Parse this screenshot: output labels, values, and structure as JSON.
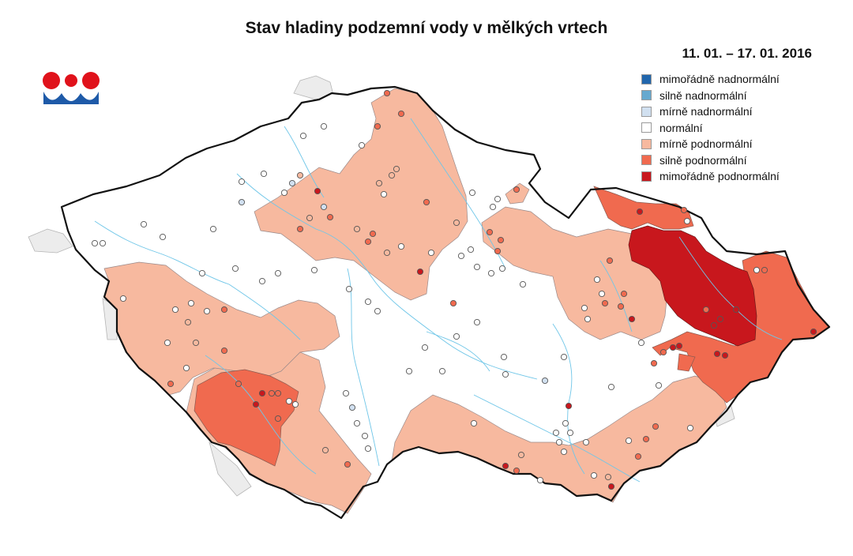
{
  "header": {
    "title": "Stav hladiny podzemní vody v mělkých vrtech",
    "period": "11. 01. – 17. 01. 2016"
  },
  "logo": {
    "icon": "chmi-logo-icon",
    "red": "#e0121b",
    "blue": "#1e5aa8"
  },
  "legend": {
    "items": [
      {
        "label": "mimořádně nadnormální",
        "color": "#2166ac"
      },
      {
        "label": "silně nadnormální",
        "color": "#67a9cf"
      },
      {
        "label": "mírně nadnormální",
        "color": "#d1e0f0"
      },
      {
        "label": "normální",
        "color": "#ffffff"
      },
      {
        "label": "mírně podnormální",
        "color": "#f7b99f"
      },
      {
        "label": "silně podnormální",
        "color": "#f06a4f"
      },
      {
        "label": "mimořádně podnormální",
        "color": "#c8171d"
      }
    ]
  },
  "map": {
    "border_color": "#111111",
    "river_color": "#6fc6e8",
    "outside_color": "#ececec"
  }
}
